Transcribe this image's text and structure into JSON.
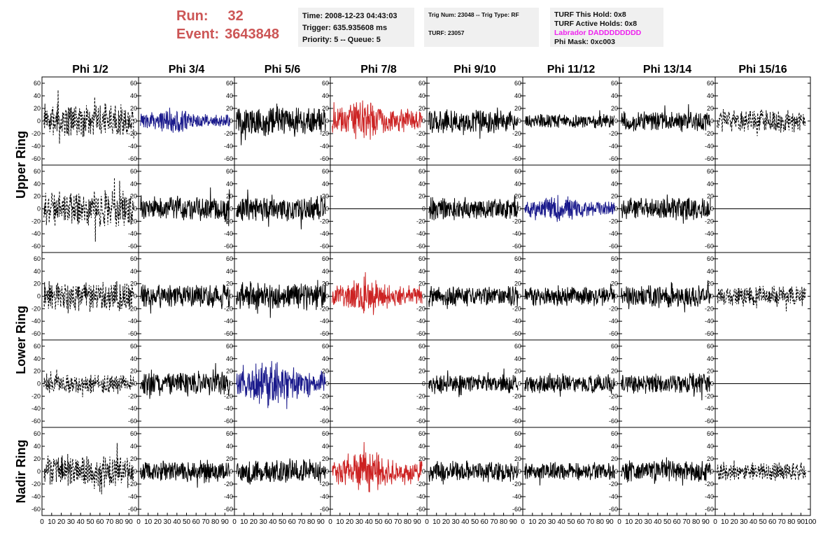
{
  "header": {
    "run_label": "Run:",
    "run_value": "32",
    "event_label": "Event:",
    "event_value": "3643848",
    "time": "Time: 2008-12-23 04:43:03",
    "trigger": "Trigger: 635.935608 ms",
    "priority": "Priority: 5 -- Queue: 5",
    "trig_num": "Trig Num: 23048 -- Trig Type: RF",
    "turf": "TURF: 23057",
    "turf_this_hold": "TURF This Hold: 0x8",
    "turf_active_holds": "TURF Active Holds: 0x8",
    "labrador": "Labrador DADDDDDDDD",
    "phi_mask": "Phi Mask: 0xc003"
  },
  "colors": {
    "background": "#ffffff",
    "info_bg": "#f0f0f0",
    "run_text": "#cc5555",
    "labrador_text": "#ee22ee",
    "trace_default": "#000000",
    "trace_blue": "#1a1a8c",
    "trace_red": "#cc2222"
  },
  "chart_data": {
    "type": "line",
    "columns": [
      "Phi 1/2",
      "Phi 3/4",
      "Phi 5/6",
      "Phi 7/8",
      "Phi 9/10",
      "Phi 11/12",
      "Phi 13/14",
      "Phi 15/16"
    ],
    "rows": [
      "Upper Ring",
      "Upper Ring",
      "Lower Ring",
      "Lower Ring",
      "Nadir Ring"
    ],
    "row_labels": [
      {
        "text": "Upper Ring",
        "rows": [
          0,
          1
        ]
      },
      {
        "text": "Lower Ring",
        "rows": [
          2,
          3
        ]
      },
      {
        "text": "Nadir Ring",
        "rows": [
          4
        ]
      }
    ],
    "xlim": [
      0,
      100
    ],
    "ylim": [
      -70,
      70
    ],
    "yticks": [
      -60,
      -40,
      -20,
      0,
      20,
      40,
      60
    ],
    "xtick_labels": [
      "0",
      "10",
      "20",
      "30",
      "40",
      "50",
      "60",
      "70",
      "80",
      "90",
      "100"
    ],
    "grid": false,
    "panels": [
      [
        {
          "style": "dashed",
          "color": "black",
          "amp": 22
        },
        {
          "style": "solid",
          "color": "blue",
          "amp": 14
        },
        {
          "style": "solid",
          "color": "black",
          "amp": 20
        },
        {
          "style": "solid",
          "color": "red",
          "amp": 24
        },
        {
          "style": "solid",
          "color": "black",
          "amp": 16
        },
        {
          "style": "solid",
          "color": "black",
          "amp": 9
        },
        {
          "style": "solid",
          "color": "black",
          "amp": 13
        },
        {
          "style": "dashed",
          "color": "black",
          "amp": 15
        }
      ],
      [
        {
          "style": "dashed",
          "color": "black",
          "amp": 24
        },
        {
          "style": "solid",
          "color": "black",
          "amp": 16
        },
        {
          "style": "solid",
          "color": "black",
          "amp": 18
        },
        {
          "style": "flat",
          "color": "black",
          "amp": 0
        },
        {
          "style": "solid",
          "color": "black",
          "amp": 15
        },
        {
          "style": "solid",
          "color": "blue",
          "amp": 16
        },
        {
          "style": "solid",
          "color": "black",
          "amp": 15
        },
        {
          "style": "flat",
          "color": "black",
          "amp": 0
        }
      ],
      [
        {
          "style": "dashed",
          "color": "black",
          "amp": 20
        },
        {
          "style": "solid",
          "color": "black",
          "amp": 16
        },
        {
          "style": "solid",
          "color": "black",
          "amp": 18
        },
        {
          "style": "solid",
          "color": "red",
          "amp": 22
        },
        {
          "style": "solid",
          "color": "black",
          "amp": 14
        },
        {
          "style": "solid",
          "color": "black",
          "amp": 13
        },
        {
          "style": "solid",
          "color": "black",
          "amp": 15
        },
        {
          "style": "dashed",
          "color": "black",
          "amp": 14
        }
      ],
      [
        {
          "style": "dashed",
          "color": "black",
          "amp": 13
        },
        {
          "style": "solid",
          "color": "black",
          "amp": 16
        },
        {
          "style": "solid",
          "color": "blue",
          "amp": 28
        },
        {
          "style": "flat",
          "color": "black",
          "amp": 0
        },
        {
          "style": "solid",
          "color": "black",
          "amp": 12
        },
        {
          "style": "solid",
          "color": "black",
          "amp": 13
        },
        {
          "style": "solid",
          "color": "black",
          "amp": 14
        },
        {
          "style": "flat",
          "color": "black",
          "amp": 0
        }
      ],
      [
        {
          "style": "dashed",
          "color": "black",
          "amp": 22
        },
        {
          "style": "solid",
          "color": "black",
          "amp": 14
        },
        {
          "style": "solid",
          "color": "black",
          "amp": 16
        },
        {
          "style": "solid",
          "color": "red",
          "amp": 26
        },
        {
          "style": "solid",
          "color": "black",
          "amp": 14
        },
        {
          "style": "solid",
          "color": "black",
          "amp": 12
        },
        {
          "style": "solid",
          "color": "black",
          "amp": 14
        },
        {
          "style": "dashed",
          "color": "black",
          "amp": 12
        }
      ]
    ]
  }
}
